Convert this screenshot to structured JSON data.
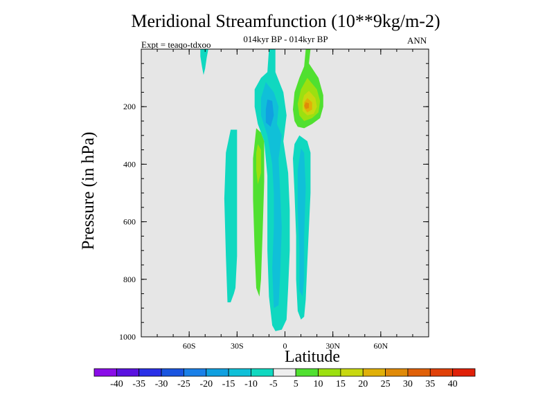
{
  "chart_data": {
    "type": "contour",
    "title": "Meridional Streamfunction (10**9kg/m-2)",
    "subtitle": "014kyr BP - 014kyr BP",
    "experiment": "Expt = teaqo-tdxoo",
    "period": "ANN",
    "xlabel": "Latitude",
    "ylabel": "Pressure (in hPa)",
    "xlim": [
      -90,
      90
    ],
    "ylim": [
      0,
      1000
    ],
    "x_ticks": [
      {
        "value": -60,
        "label": "60S"
      },
      {
        "value": -30,
        "label": "30S"
      },
      {
        "value": 0,
        "label": "0"
      },
      {
        "value": 30,
        "label": "30N"
      },
      {
        "value": 60,
        "label": "60N"
      }
    ],
    "y_ticks": [
      {
        "value": 200,
        "label": "200"
      },
      {
        "value": 400,
        "label": "400"
      },
      {
        "value": 600,
        "label": "600"
      },
      {
        "value": 800,
        "label": "800"
      },
      {
        "value": 1000,
        "label": "1000"
      }
    ],
    "missing_color": "#e6e6e6",
    "colorbar": {
      "labels": [
        "-40",
        "-35",
        "-30",
        "-25",
        "-20",
        "-15",
        "-10",
        "-5",
        "5",
        "10",
        "15",
        "20",
        "25",
        "30",
        "35",
        "40"
      ],
      "colors": [
        "#8a0ce8",
        "#5a12e0",
        "#2a30e8",
        "#1a55e0",
        "#1a80e8",
        "#10a0e0",
        "#10c0d8",
        "#10d8c0",
        "#eeeeee",
        "#50e030",
        "#9ce010",
        "#c8d810",
        "#e0b008",
        "#e08a08",
        "#e06008",
        "#e04008",
        "#e02008"
      ]
    },
    "regions": [
      {
        "name": "sh-upper-weak-cell",
        "value": -5,
        "points": [
          [
            -53,
            0
          ],
          [
            -48,
            0
          ],
          [
            -49,
            30
          ],
          [
            -50,
            68
          ],
          [
            -51,
            90
          ],
          [
            -52,
            60
          ],
          [
            -53,
            25
          ]
        ]
      },
      {
        "name": "sh-mid-negative-cell",
        "value": -5,
        "points": [
          [
            -34,
            280
          ],
          [
            -30,
            280
          ],
          [
            -30,
            520
          ],
          [
            -30,
            720
          ],
          [
            -31,
            830
          ],
          [
            -32,
            850
          ],
          [
            -34,
            880
          ],
          [
            -36,
            880
          ],
          [
            -37,
            720
          ],
          [
            -38,
            520
          ],
          [
            -37,
            360
          ]
        ]
      },
      {
        "name": "sh-positive-cell",
        "value": 5,
        "points": [
          [
            -18,
            275
          ],
          [
            -15,
            290
          ],
          [
            -13,
            320
          ],
          [
            -13,
            460
          ],
          [
            -14,
            640
          ],
          [
            -15,
            800
          ],
          [
            -16,
            860
          ],
          [
            -18,
            830
          ],
          [
            -19,
            700
          ],
          [
            -20,
            520
          ],
          [
            -20,
            380
          ]
        ]
      },
      {
        "name": "sh-positive-core",
        "value": 10,
        "points": [
          [
            -17,
            330
          ],
          [
            -15,
            350
          ],
          [
            -15,
            430
          ],
          [
            -17,
            470
          ],
          [
            -18,
            420
          ],
          [
            -18,
            360
          ]
        ]
      },
      {
        "name": "equatorial-negative-plume",
        "value": -5,
        "points": [
          [
            -10,
            0
          ],
          [
            -6,
            0
          ],
          [
            -6,
            80
          ],
          [
            -1,
            150
          ],
          [
            1,
            230
          ],
          [
            -1,
            320
          ],
          [
            2,
            430
          ],
          [
            3,
            560
          ],
          [
            3,
            700
          ],
          [
            2,
            830
          ],
          [
            1,
            940
          ],
          [
            -2,
            975
          ],
          [
            -6,
            980
          ],
          [
            -8,
            960
          ],
          [
            -10,
            860
          ],
          [
            -11,
            700
          ],
          [
            -11,
            560
          ],
          [
            -11,
            440
          ],
          [
            -13,
            320
          ],
          [
            -17,
            260
          ],
          [
            -19,
            200
          ],
          [
            -19,
            140
          ],
          [
            -15,
            100
          ],
          [
            -11,
            80
          ]
        ]
      },
      {
        "name": "equatorial-negative-inner",
        "value": -10,
        "points": [
          [
            -12,
            115
          ],
          [
            -7,
            150
          ],
          [
            -4,
            200
          ],
          [
            -5,
            260
          ],
          [
            -2,
            300
          ],
          [
            -4,
            380
          ],
          [
            -3,
            500
          ],
          [
            -2,
            620
          ],
          [
            -3,
            780
          ],
          [
            -4,
            890
          ],
          [
            -7,
            900
          ],
          [
            -8,
            760
          ],
          [
            -7,
            620
          ],
          [
            -7,
            500
          ],
          [
            -8,
            400
          ],
          [
            -11,
            300
          ],
          [
            -15,
            230
          ],
          [
            -15,
            170
          ]
        ]
      },
      {
        "name": "equatorial-negative-core",
        "value": -15,
        "points": [
          [
            -11,
            175
          ],
          [
            -8,
            180
          ],
          [
            -7,
            230
          ],
          [
            -9,
            270
          ],
          [
            -12,
            255
          ],
          [
            -12,
            210
          ]
        ]
      },
      {
        "name": "nh-negative-cell",
        "value": -5,
        "points": [
          [
            9,
            300
          ],
          [
            14,
            320
          ],
          [
            16,
            360
          ],
          [
            16,
            500
          ],
          [
            15,
            620
          ],
          [
            14,
            740
          ],
          [
            13,
            870
          ],
          [
            12,
            930
          ],
          [
            10,
            940
          ],
          [
            8,
            910
          ],
          [
            7,
            800
          ],
          [
            7,
            650
          ],
          [
            6,
            500
          ],
          [
            5,
            380
          ],
          [
            6,
            330
          ]
        ]
      },
      {
        "name": "nh-negative-inner",
        "value": -10,
        "points": [
          [
            10,
            345
          ],
          [
            12,
            360
          ],
          [
            13,
            480
          ],
          [
            12,
            650
          ],
          [
            12,
            800
          ],
          [
            11,
            860
          ],
          [
            9,
            840
          ],
          [
            9,
            700
          ],
          [
            8,
            560
          ],
          [
            8,
            420
          ]
        ]
      },
      {
        "name": "nh-upper-positive-cell",
        "value": 5,
        "points": [
          [
            13,
            0
          ],
          [
            16,
            0
          ],
          [
            15,
            50
          ],
          [
            21,
            100
          ],
          [
            24,
            160
          ],
          [
            24,
            200
          ],
          [
            22,
            240
          ],
          [
            17,
            260
          ],
          [
            12,
            275
          ],
          [
            8,
            270
          ],
          [
            6,
            250
          ],
          [
            5,
            210
          ],
          [
            6,
            150
          ],
          [
            9,
            100
          ],
          [
            12,
            60
          ]
        ]
      },
      {
        "name": "nh-upper-positive-inner",
        "value": 10,
        "points": [
          [
            14,
            100
          ],
          [
            20,
            140
          ],
          [
            22,
            180
          ],
          [
            21,
            220
          ],
          [
            17,
            240
          ],
          [
            12,
            250
          ],
          [
            9,
            230
          ],
          [
            8,
            190
          ],
          [
            10,
            140
          ]
        ]
      },
      {
        "name": "nh-upper-positive-ring",
        "value": 15,
        "points": [
          [
            15,
            145
          ],
          [
            19,
            170
          ],
          [
            20,
            200
          ],
          [
            18,
            225
          ],
          [
            14,
            230
          ],
          [
            11,
            215
          ],
          [
            11,
            180
          ],
          [
            12,
            160
          ]
        ]
      },
      {
        "name": "nh-upper-positive-core",
        "value": 20,
        "points": [
          [
            14,
            170
          ],
          [
            17,
            185
          ],
          [
            17,
            210
          ],
          [
            14,
            220
          ],
          [
            12,
            205
          ],
          [
            12,
            185
          ]
        ]
      },
      {
        "name": "nh-upper-positive-peak",
        "value": 25,
        "points": [
          [
            13,
            185
          ],
          [
            15,
            188
          ],
          [
            15,
            205
          ],
          [
            13,
            208
          ],
          [
            12,
            197
          ]
        ]
      }
    ]
  }
}
